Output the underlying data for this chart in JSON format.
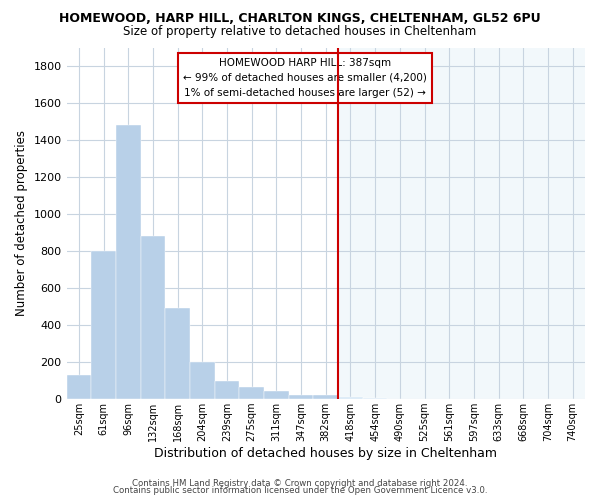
{
  "title": "HOMEWOOD, HARP HILL, CHARLTON KINGS, CHELTENHAM, GL52 6PU",
  "subtitle": "Size of property relative to detached houses in Cheltenham",
  "xlabel": "Distribution of detached houses by size in Cheltenham",
  "ylabel": "Number of detached properties",
  "footer1": "Contains HM Land Registry data © Crown copyright and database right 2024.",
  "footer2": "Contains public sector information licensed under the Open Government Licence v3.0.",
  "annotation_title": "HOMEWOOD HARP HILL: 387sqm",
  "annotation_line1": "← 99% of detached houses are smaller (4,200)",
  "annotation_line2": "1% of semi-detached houses are larger (52) →",
  "bar_color_left": "#b8d0e8",
  "bar_color_right": "#d6e8f5",
  "marker_color": "#cc0000",
  "annotation_border_color": "#cc0000",
  "background_color": "#ffffff",
  "plot_bg_color": "#ffffff",
  "grid_color": "#c8d4e0",
  "categories": [
    "25sqm",
    "61sqm",
    "96sqm",
    "132sqm",
    "168sqm",
    "204sqm",
    "239sqm",
    "275sqm",
    "311sqm",
    "347sqm",
    "382sqm",
    "418sqm",
    "454sqm",
    "490sqm",
    "525sqm",
    "561sqm",
    "597sqm",
    "633sqm",
    "668sqm",
    "704sqm",
    "740sqm"
  ],
  "values": [
    130,
    800,
    1480,
    880,
    490,
    200,
    100,
    65,
    45,
    25,
    20,
    10,
    5,
    3,
    2,
    2,
    2,
    1,
    1,
    1,
    1
  ],
  "ylim": [
    0,
    1900
  ],
  "yticks": [
    0,
    200,
    400,
    600,
    800,
    1000,
    1200,
    1400,
    1600,
    1800
  ],
  "marker_bin_index": 10,
  "title_fontsize": 9,
  "subtitle_fontsize": 8.5
}
